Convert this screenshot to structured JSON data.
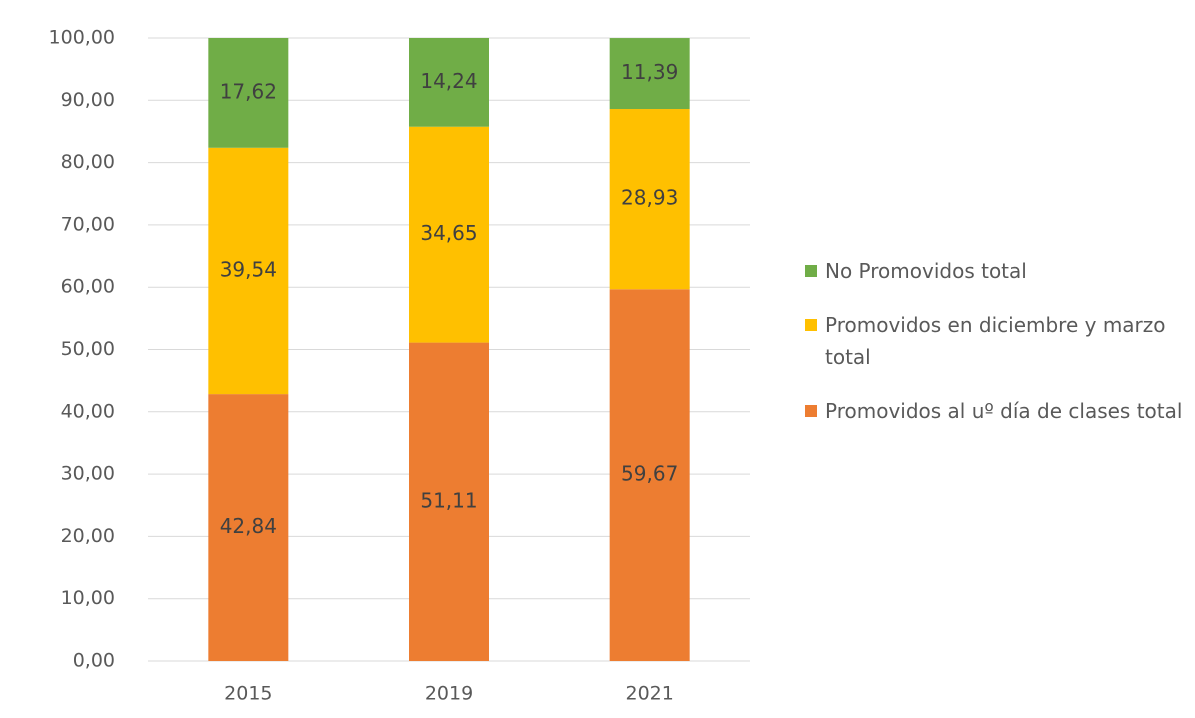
{
  "chart_data": {
    "type": "stacked_bar",
    "categories": [
      "2015",
      "2019",
      "2021"
    ],
    "series": [
      {
        "name": "Promovidos al uº día de clases total",
        "color": "#ED7D31",
        "values": [
          42.84,
          51.11,
          59.67
        ],
        "value_labels": [
          "42,84",
          "51,11",
          "59,67"
        ]
      },
      {
        "name": "Promovidos en diciembre y marzo total",
        "color": "#FFC000",
        "values": [
          39.54,
          34.65,
          28.93
        ],
        "value_labels": [
          "39,54",
          "34,65",
          "28,93"
        ]
      },
      {
        "name": "No Promovidos total",
        "color": "#70AD47",
        "values": [
          17.62,
          14.24,
          11.39
        ],
        "value_labels": [
          "17,62",
          "14,24",
          "11,39"
        ]
      }
    ],
    "ylim": [
      0,
      100
    ],
    "yticks": [
      {
        "value": 0,
        "label": "0,00"
      },
      {
        "value": 10,
        "label": "10,00"
      },
      {
        "value": 20,
        "label": "20,00"
      },
      {
        "value": 30,
        "label": "30,00"
      },
      {
        "value": 40,
        "label": "40,00"
      },
      {
        "value": 50,
        "label": "50,00"
      },
      {
        "value": 60,
        "label": "60,00"
      },
      {
        "value": 70,
        "label": "70,00"
      },
      {
        "value": 80,
        "label": "80,00"
      },
      {
        "value": 90,
        "label": "90,00"
      },
      {
        "value": 100,
        "label": "100,00"
      }
    ],
    "grid": true,
    "legend": "right"
  }
}
